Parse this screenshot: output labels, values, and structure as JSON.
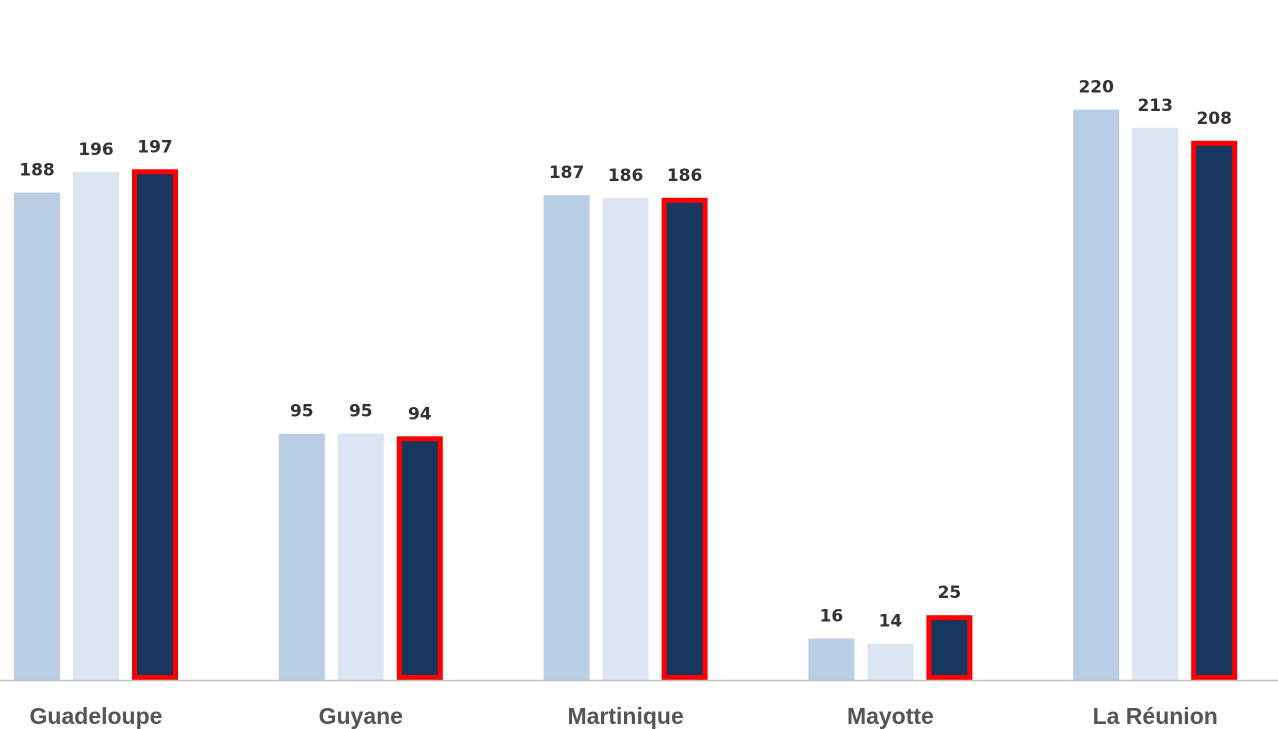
{
  "chart_data": {
    "type": "bar",
    "categories": [
      "Guadeloupe",
      "Guyane",
      "Martinique",
      "Mayotte",
      "La Réunion"
    ],
    "series": [
      {
        "values": [
          188,
          95,
          187,
          16,
          220
        ],
        "color": "#b9cde5"
      },
      {
        "values": [
          196,
          95,
          186,
          14,
          213
        ],
        "color": "#dce6f2"
      },
      {
        "values": [
          197,
          94,
          186,
          25,
          208
        ],
        "color": "#17375e",
        "outline": "#ff0000"
      }
    ],
    "title": "",
    "xlabel": "",
    "ylabel": "",
    "ylim": [
      0,
      240
    ],
    "grid": false,
    "data_labels": true,
    "axis_color": "#bfbfbf"
  }
}
